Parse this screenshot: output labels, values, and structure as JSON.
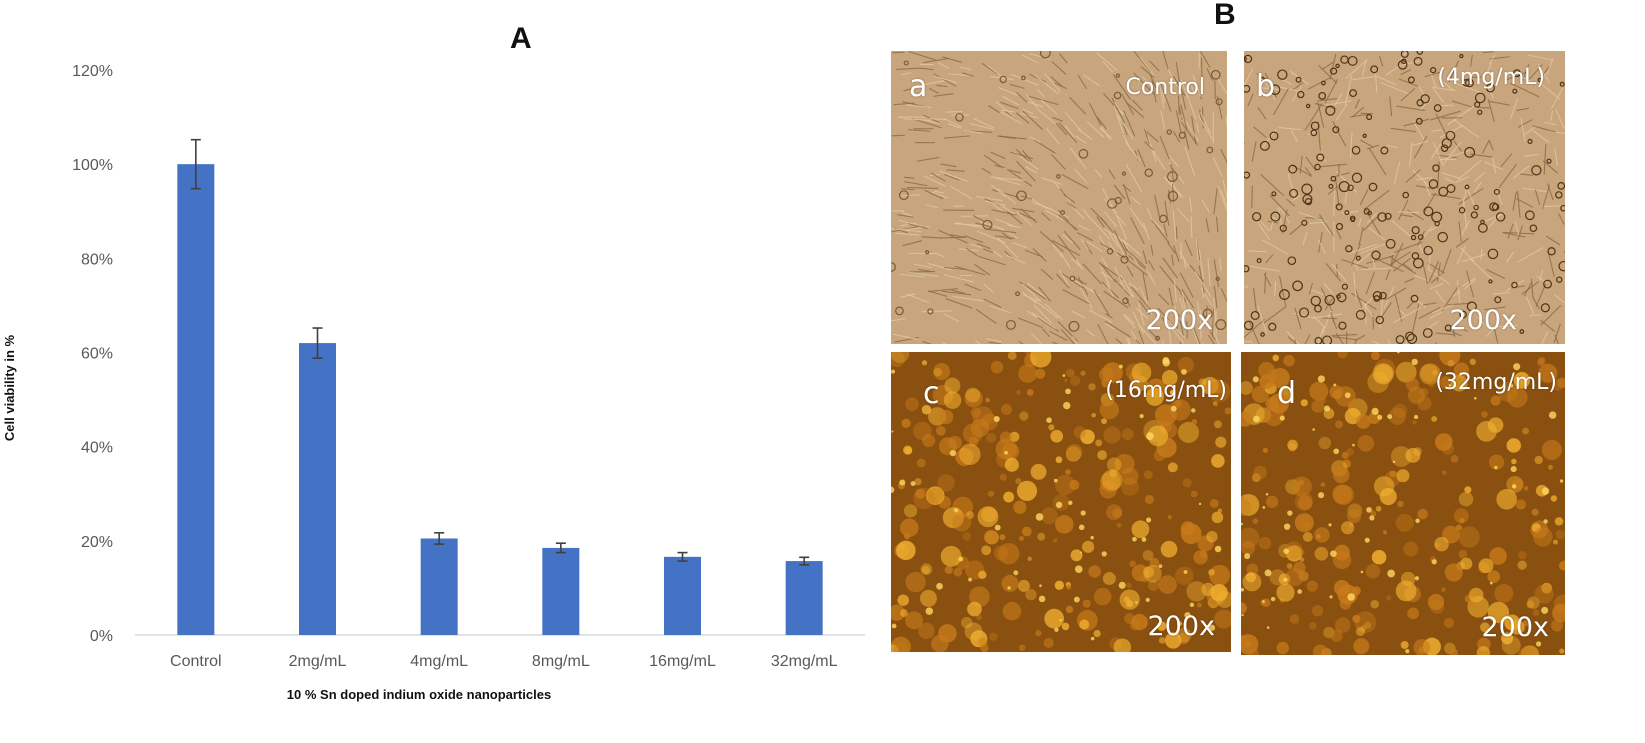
{
  "panel_a": {
    "letter": "A"
  },
  "panel_b": {
    "letter": "B",
    "images": [
      {
        "letter": "a",
        "condition": "Control",
        "magnification": "200x",
        "style": "brightfield"
      },
      {
        "letter": "b",
        "condition": "(4mg/mL)",
        "magnification": "200x",
        "style": "brightfield-dense"
      },
      {
        "letter": "c",
        "condition": "(16mg/mL)",
        "magnification": "200x",
        "style": "fluorescence"
      },
      {
        "letter": "d",
        "condition": "(32mg/mL)",
        "magnification": "200x",
        "style": "fluorescence"
      }
    ]
  },
  "chart_data": {
    "type": "bar",
    "title": "",
    "xlabel": "10 % Sn doped indium oxide nanoparticles",
    "ylabel": "Cell viability in %",
    "categories": [
      "Control",
      "2mg/mL",
      "4mg/mL",
      "8mg/mL",
      "16mg/mL",
      "32mg/mL"
    ],
    "values": [
      100,
      62,
      20.5,
      18.5,
      16.6,
      15.7
    ],
    "error": [
      5.2,
      3.2,
      1.2,
      1.0,
      0.9,
      0.8
    ],
    "ylim": [
      0,
      120
    ],
    "yticks": [
      "0%",
      "20%",
      "40%",
      "60%",
      "80%",
      "100%",
      "120%"
    ],
    "ytick_values": [
      0,
      20,
      40,
      60,
      80,
      100,
      120
    ],
    "bar_color": "#4472c4",
    "error_color": "#404040",
    "grid": false,
    "legend": "none"
  }
}
